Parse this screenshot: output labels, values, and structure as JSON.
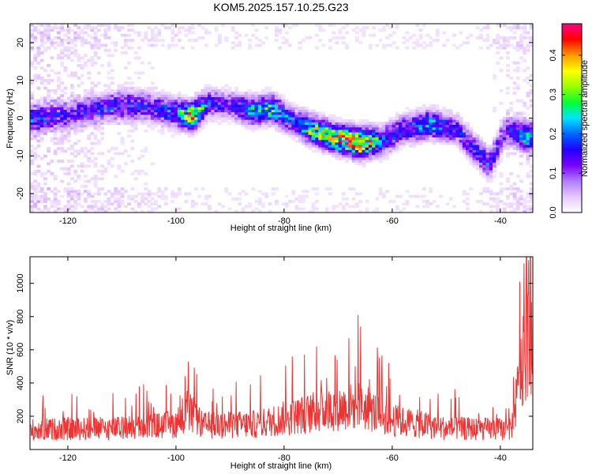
{
  "title": "KOM5.2025.157.10.25.G23",
  "chart_data": [
    {
      "type": "heatmap",
      "name": "spectrogram",
      "xlabel": "Height of straight line (km)",
      "ylabel": "Frequency (Hz)",
      "xlim": [
        -127,
        -34
      ],
      "ylim": [
        -25,
        25
      ],
      "xticks": [
        -120,
        -100,
        -80,
        -60,
        -40
      ],
      "yticks": [
        -20,
        -10,
        0,
        10,
        20
      ],
      "colorbar": {
        "label": "Normalized spectral amplitude",
        "range": [
          0,
          0.48
        ],
        "ticks": [
          0.0,
          0.1,
          0.2,
          0.3,
          0.4
        ],
        "colormap": [
          "#ffffff",
          "#e6c8ff",
          "#b07cff",
          "#7a00ff",
          "#2200ff",
          "#0066ff",
          "#00e5ff",
          "#00ff33",
          "#9aff00",
          "#ffff00",
          "#ff9900",
          "#ff0000",
          "#ff0088"
        ]
      },
      "ridge": [
        {
          "x": -126,
          "y": 0.0,
          "a": 0.16
        },
        {
          "x": -120,
          "y": 1.0,
          "a": 0.12
        },
        {
          "x": -115,
          "y": 2.5,
          "a": 0.14
        },
        {
          "x": -110,
          "y": 3.5,
          "a": 0.16
        },
        {
          "x": -105,
          "y": 3.0,
          "a": 0.14
        },
        {
          "x": -100,
          "y": 1.5,
          "a": 0.2
        },
        {
          "x": -97,
          "y": 0.5,
          "a": 0.38
        },
        {
          "x": -94,
          "y": 4.0,
          "a": 0.16
        },
        {
          "x": -90,
          "y": 3.5,
          "a": 0.12
        },
        {
          "x": -86,
          "y": 2.0,
          "a": 0.22
        },
        {
          "x": -82,
          "y": 2.5,
          "a": 0.26
        },
        {
          "x": -78,
          "y": -1.0,
          "a": 0.14
        },
        {
          "x": -75,
          "y": -3.0,
          "a": 0.3
        },
        {
          "x": -71,
          "y": -5.0,
          "a": 0.34
        },
        {
          "x": -66,
          "y": -6.5,
          "a": 0.44
        },
        {
          "x": -62,
          "y": -6.0,
          "a": 0.2
        },
        {
          "x": -58,
          "y": -3.0,
          "a": 0.16
        },
        {
          "x": -53,
          "y": -1.5,
          "a": 0.22
        },
        {
          "x": -48,
          "y": -3.0,
          "a": 0.14
        },
        {
          "x": -42,
          "y": -12.5,
          "a": 0.16
        },
        {
          "x": -39,
          "y": -3.0,
          "a": 0.12
        },
        {
          "x": -35,
          "y": -5.0,
          "a": 0.22
        }
      ]
    },
    {
      "type": "line",
      "name": "snr",
      "xlabel": "Height of straight line (km)",
      "ylabel": "SNR (10 * v/v)",
      "xlim": [
        -127,
        -34
      ],
      "ylim": [
        0,
        1160
      ],
      "xticks": [
        -120,
        -100,
        -80,
        -60,
        -40
      ],
      "yticks": [
        200,
        400,
        600,
        800,
        1000
      ],
      "color": "#ee3333",
      "envelope": [
        {
          "x": -127,
          "y": 150
        },
        {
          "x": -110,
          "y": 160
        },
        {
          "x": -100,
          "y": 190
        },
        {
          "x": -98,
          "y": 300
        },
        {
          "x": -95,
          "y": 180
        },
        {
          "x": -85,
          "y": 190
        },
        {
          "x": -78,
          "y": 250
        },
        {
          "x": -72,
          "y": 300
        },
        {
          "x": -66,
          "y": 330
        },
        {
          "x": -60,
          "y": 220
        },
        {
          "x": -50,
          "y": 160
        },
        {
          "x": -38,
          "y": 150
        },
        {
          "x": -36.5,
          "y": 500
        },
        {
          "x": -35,
          "y": 800
        },
        {
          "x": -34,
          "y": 900
        }
      ],
      "spikes": [
        {
          "x": -97.7,
          "y": 530
        },
        {
          "x": -66.3,
          "y": 810
        },
        {
          "x": -68.0,
          "y": 670
        },
        {
          "x": -74.0,
          "y": 620
        },
        {
          "x": -78.5,
          "y": 560
        },
        {
          "x": -34.8,
          "y": 1140
        },
        {
          "x": -35.6,
          "y": 1120
        },
        {
          "x": -36.4,
          "y": 1010
        }
      ]
    }
  ]
}
